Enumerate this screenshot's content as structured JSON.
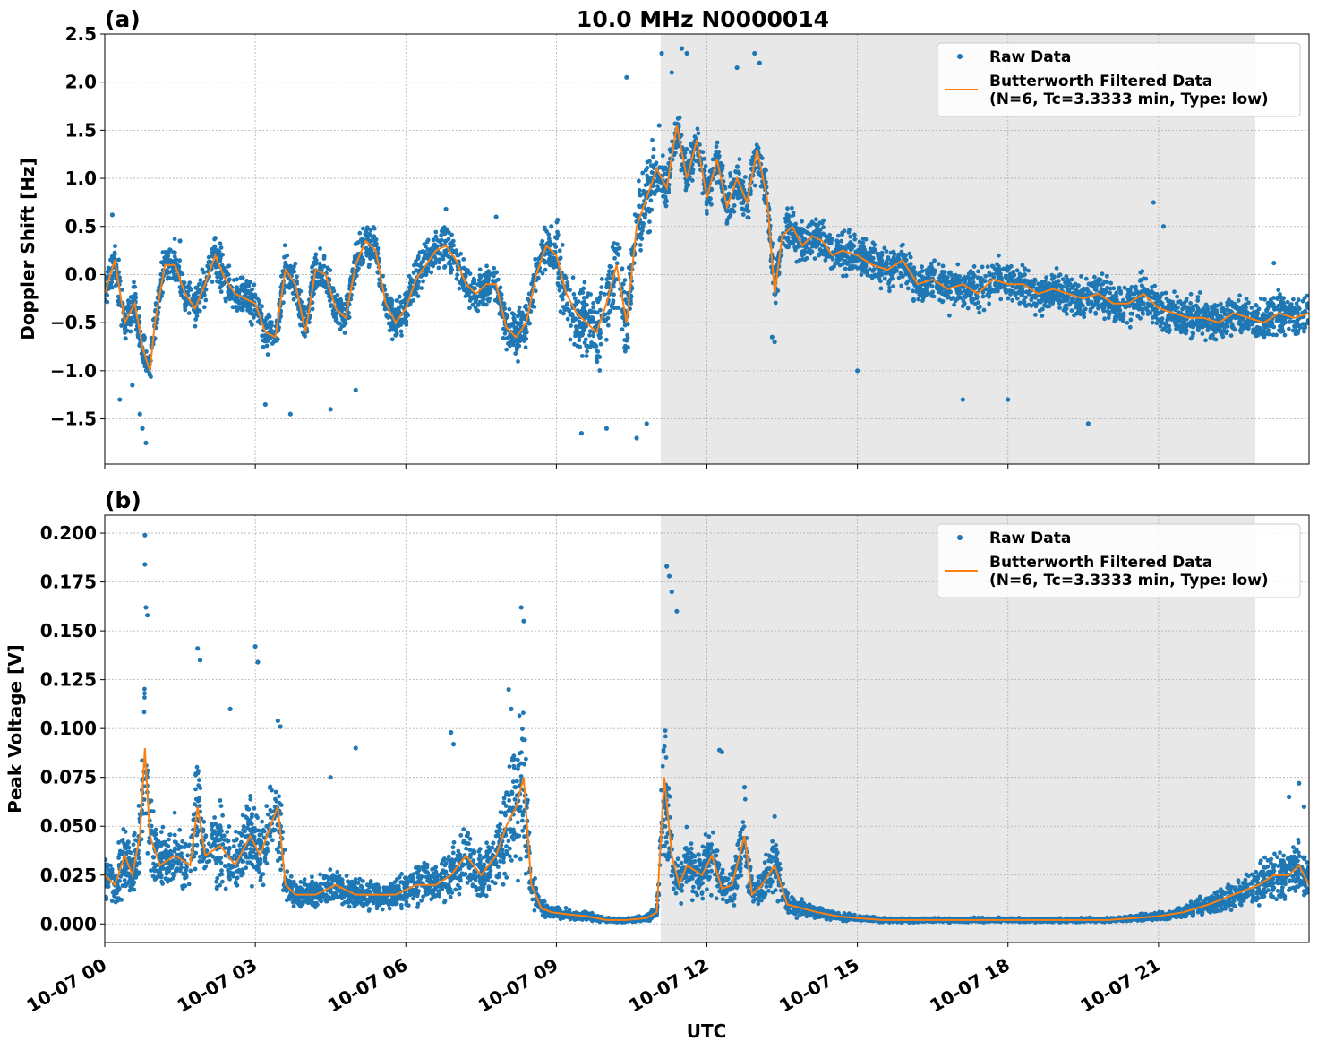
{
  "colors": {
    "raw": "#1f77b4",
    "filtered": "#ff7f0e",
    "shade": "#e8e8e8",
    "grid": "#b0b0b0"
  },
  "figure": {
    "title": "10.0 MHz N0000014",
    "xlabel": "UTC"
  },
  "chart_data": [
    {
      "panel_label": "(a)",
      "type": "scatter",
      "ylabel": "Doppler Shift [Hz]",
      "xlim": [
        0,
        24
      ],
      "ylim": [
        -1.97,
        2.5
      ],
      "yticks": [
        2.5,
        2.0,
        1.5,
        1.0,
        0.5,
        0.0,
        -0.5,
        -1.0,
        -1.5
      ],
      "ytick_labels": [
        "2.5",
        "2.0",
        "1.5",
        "1.0",
        "0.5",
        "0.0",
        "−0.5",
        "−1.0",
        "−1.5"
      ],
      "xticks": [
        0,
        3,
        6,
        9,
        12,
        15,
        18,
        21
      ],
      "xtick_labels": [
        "10-07 00",
        "10-07 03",
        "10-07 06",
        "10-07 09",
        "10-07 12",
        "10-07 15",
        "10-07 18",
        "10-07 21"
      ],
      "shaded_span": [
        11.08,
        22.93
      ],
      "grid": true,
      "legend_position": "top-right",
      "legend": {
        "raw": "Raw Data",
        "filtered_line1": "Butterworth Filtered Data",
        "filtered_line2": "(N=6, Tc=3.3333 min, Type: low)"
      },
      "series": [
        {
          "name": "Butterworth Filtered Data",
          "style": "line",
          "x": [
            0,
            0.2,
            0.4,
            0.6,
            0.75,
            0.9,
            1.0,
            1.2,
            1.4,
            1.6,
            1.8,
            2.0,
            2.2,
            2.4,
            2.6,
            2.8,
            3.0,
            3.2,
            3.4,
            3.6,
            3.8,
            4.0,
            4.2,
            4.4,
            4.6,
            4.8,
            5.0,
            5.2,
            5.4,
            5.6,
            5.8,
            6.0,
            6.2,
            6.4,
            6.6,
            6.8,
            7.0,
            7.2,
            7.4,
            7.6,
            7.8,
            8.0,
            8.2,
            8.4,
            8.6,
            8.8,
            9.0,
            9.2,
            9.4,
            9.6,
            9.8,
            10.0,
            10.2,
            10.4,
            10.6,
            10.8,
            11.0,
            11.2,
            11.4,
            11.6,
            11.8,
            12.0,
            12.2,
            12.4,
            12.6,
            12.8,
            13.0,
            13.2,
            13.35,
            13.5,
            13.7,
            13.9,
            14.1,
            14.3,
            14.5,
            14.7,
            15.0,
            15.3,
            15.6,
            15.9,
            16.2,
            16.5,
            16.8,
            17.1,
            17.4,
            17.7,
            18.0,
            18.3,
            18.6,
            18.9,
            19.2,
            19.5,
            19.8,
            20.1,
            20.4,
            20.7,
            21.0,
            21.3,
            21.6,
            21.9,
            22.2,
            22.5,
            22.8,
            23.1,
            23.4,
            23.7,
            24.0
          ],
          "y": [
            -0.2,
            0.15,
            -0.5,
            -0.3,
            -0.75,
            -1.0,
            -0.5,
            0.1,
            0.1,
            -0.2,
            -0.35,
            -0.1,
            0.2,
            -0.05,
            -0.2,
            -0.25,
            -0.3,
            -0.6,
            -0.65,
            0.05,
            -0.1,
            -0.6,
            0.05,
            0.0,
            -0.35,
            -0.45,
            0.1,
            0.35,
            0.25,
            -0.3,
            -0.5,
            -0.35,
            -0.05,
            0.1,
            0.25,
            0.3,
            0.15,
            -0.1,
            -0.2,
            -0.1,
            -0.1,
            -0.55,
            -0.65,
            -0.5,
            0.0,
            0.3,
            0.2,
            -0.2,
            -0.4,
            -0.5,
            -0.6,
            -0.3,
            0.1,
            -0.5,
            0.5,
            0.8,
            1.1,
            0.9,
            1.55,
            1.0,
            1.4,
            0.8,
            1.2,
            0.7,
            1.0,
            0.75,
            1.3,
            0.8,
            -0.2,
            0.4,
            0.5,
            0.3,
            0.4,
            0.35,
            0.2,
            0.25,
            0.2,
            0.1,
            0.05,
            0.15,
            -0.1,
            -0.05,
            -0.15,
            -0.1,
            -0.2,
            -0.05,
            -0.1,
            -0.1,
            -0.2,
            -0.15,
            -0.2,
            -0.25,
            -0.2,
            -0.3,
            -0.3,
            -0.2,
            -0.35,
            -0.4,
            -0.45,
            -0.45,
            -0.5,
            -0.4,
            -0.45,
            -0.5,
            -0.4,
            -0.45,
            -0.4
          ]
        },
        {
          "name": "Raw Data",
          "style": "scatter",
          "x": [
            0.15,
            0.3,
            0.55,
            0.7,
            0.75,
            0.82,
            1.5,
            2.2,
            3.2,
            3.7,
            4.5,
            5.0,
            6.8,
            7.8,
            8.9,
            9.5,
            10.0,
            10.4,
            10.6,
            10.8,
            11.05,
            11.1,
            11.3,
            11.5,
            11.6,
            12.6,
            12.95,
            13.05,
            13.3,
            13.35,
            15.0,
            17.1,
            18.0,
            19.6,
            20.9,
            21.1,
            23.3
          ],
          "y": [
            0.62,
            -1.3,
            -1.15,
            -1.45,
            -1.6,
            -1.75,
            0.35,
            0.38,
            -1.35,
            -1.45,
            -1.4,
            -1.2,
            0.68,
            0.6,
            0.5,
            -1.65,
            -1.6,
            2.05,
            -1.7,
            -1.55,
            1.55,
            2.3,
            2.1,
            2.35,
            2.3,
            2.15,
            2.3,
            2.2,
            -0.65,
            -0.7,
            -1.0,
            -1.3,
            -1.3,
            -1.55,
            0.75,
            0.5,
            0.12
          ]
        }
      ]
    },
    {
      "panel_label": "(b)",
      "type": "scatter",
      "ylabel": "Peak Voltage [V]",
      "xlim": [
        0,
        24
      ],
      "ylim": [
        -0.0095,
        0.2092
      ],
      "yticks": [
        0.2,
        0.175,
        0.15,
        0.125,
        0.1,
        0.075,
        0.05,
        0.025,
        0.0
      ],
      "ytick_labels": [
        "0.200",
        "0.175",
        "0.150",
        "0.125",
        "0.100",
        "0.075",
        "0.050",
        "0.025",
        "0.000"
      ],
      "xticks": [
        0,
        3,
        6,
        9,
        12,
        15,
        18,
        21
      ],
      "xtick_labels": [
        "10-07 00",
        "10-07 03",
        "10-07 06",
        "10-07 09",
        "10-07 12",
        "10-07 15",
        "10-07 18",
        "10-07 21"
      ],
      "shaded_span": [
        11.08,
        22.93
      ],
      "grid": true,
      "legend_position": "top-right",
      "legend": {
        "raw": "Raw Data",
        "filtered_line1": "Butterworth Filtered Data",
        "filtered_line2": "(N=6, Tc=3.3333 min, Type: low)"
      },
      "series": [
        {
          "name": "Butterworth Filtered Data",
          "style": "line",
          "x": [
            0,
            0.2,
            0.4,
            0.55,
            0.7,
            0.8,
            0.9,
            1.1,
            1.4,
            1.7,
            1.85,
            2.0,
            2.3,
            2.6,
            2.9,
            3.1,
            3.3,
            3.45,
            3.6,
            3.8,
            4.2,
            4.6,
            5.0,
            5.4,
            5.8,
            6.2,
            6.6,
            6.9,
            7.2,
            7.5,
            7.8,
            8.0,
            8.2,
            8.35,
            8.5,
            8.7,
            8.9,
            9.2,
            9.6,
            10.0,
            10.4,
            10.8,
            11.0,
            11.15,
            11.3,
            11.45,
            11.6,
            11.9,
            12.1,
            12.3,
            12.5,
            12.75,
            12.9,
            13.1,
            13.35,
            13.6,
            13.9,
            14.2,
            14.6,
            15.0,
            15.5,
            16.0,
            16.5,
            17.0,
            17.5,
            18.0,
            18.5,
            19.0,
            19.5,
            20.0,
            20.5,
            21.0,
            21.5,
            22.0,
            22.5,
            23.0,
            23.3,
            23.6,
            23.8,
            24.0
          ],
          "y": [
            0.025,
            0.02,
            0.035,
            0.025,
            0.045,
            0.09,
            0.045,
            0.03,
            0.035,
            0.03,
            0.06,
            0.035,
            0.04,
            0.03,
            0.045,
            0.035,
            0.05,
            0.06,
            0.02,
            0.015,
            0.015,
            0.02,
            0.015,
            0.015,
            0.015,
            0.02,
            0.02,
            0.025,
            0.035,
            0.025,
            0.035,
            0.05,
            0.06,
            0.075,
            0.02,
            0.008,
            0.006,
            0.005,
            0.004,
            0.002,
            0.002,
            0.003,
            0.006,
            0.075,
            0.035,
            0.02,
            0.03,
            0.025,
            0.035,
            0.018,
            0.02,
            0.045,
            0.015,
            0.02,
            0.03,
            0.01,
            0.008,
            0.006,
            0.004,
            0.003,
            0.002,
            0.002,
            0.002,
            0.002,
            0.002,
            0.002,
            0.002,
            0.002,
            0.002,
            0.002,
            0.003,
            0.004,
            0.006,
            0.01,
            0.015,
            0.02,
            0.025,
            0.025,
            0.03,
            0.02
          ]
        },
        {
          "name": "Raw Data",
          "style": "scatter",
          "x": [
            0.8,
            0.8,
            0.82,
            0.85,
            1.85,
            1.9,
            2.5,
            3.0,
            3.05,
            3.45,
            3.5,
            4.5,
            5.0,
            6.9,
            6.95,
            8.05,
            8.1,
            8.3,
            8.35,
            11.2,
            11.25,
            11.3,
            11.4,
            12.25,
            12.3,
            12.75,
            13.35,
            23.6,
            23.8,
            23.9
          ],
          "y": [
            0.199,
            0.184,
            0.162,
            0.158,
            0.141,
            0.135,
            0.11,
            0.142,
            0.134,
            0.104,
            0.101,
            0.075,
            0.09,
            0.098,
            0.092,
            0.12,
            0.11,
            0.162,
            0.155,
            0.183,
            0.178,
            0.17,
            0.16,
            0.089,
            0.088,
            0.07,
            0.055,
            0.065,
            0.072,
            0.06
          ]
        }
      ]
    }
  ]
}
